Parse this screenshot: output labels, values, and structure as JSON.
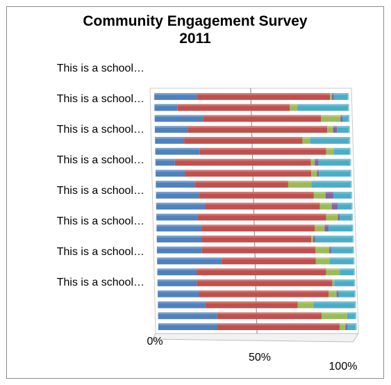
{
  "chart_data": {
    "type": "bar",
    "orientation": "horizontal",
    "stacked": "100%",
    "title": "Community Engagement Survey 2011",
    "title_lines": [
      "Community Engagement Survey",
      "2011"
    ],
    "xlabel": "",
    "ylabel": "",
    "xlim": [
      0,
      100
    ],
    "x_ticks": [
      "0%",
      "50%",
      "100%"
    ],
    "grid": "vertical at 50%",
    "legend": "none",
    "category_label": "This is a school…",
    "category_labels_shown": [
      "This is a school…",
      "This is a school…",
      "This is a school…",
      "This is a school…",
      "This is a school…",
      "This is a school…",
      "This is a school…",
      "This is a school…"
    ],
    "colors": [
      "#4f81bd",
      "#c0504d",
      "#9bbb59",
      "#8064a2",
      "#4bacc6"
    ],
    "rows": [
      [
        22,
        69,
        1,
        1,
        7
      ],
      [
        12,
        58,
        4,
        0,
        26
      ],
      [
        25,
        61,
        10,
        1,
        3
      ],
      [
        17,
        72,
        3,
        2,
        6
      ],
      [
        15,
        61,
        4,
        0,
        20
      ],
      [
        23,
        65,
        4,
        0,
        8
      ],
      [
        10,
        70,
        2,
        2,
        16
      ],
      [
        15,
        65,
        3,
        1,
        16
      ],
      [
        20,
        48,
        12,
        0,
        20
      ],
      [
        22,
        59,
        6,
        4,
        9
      ],
      [
        25,
        59,
        6,
        3,
        7
      ],
      [
        21,
        66,
        6,
        1,
        6
      ],
      [
        23,
        58,
        5,
        2,
        12
      ],
      [
        23,
        56,
        1,
        1,
        19
      ],
      [
        23,
        58,
        7,
        1,
        11
      ],
      [
        33,
        48,
        7,
        0,
        12
      ],
      [
        20,
        66,
        7,
        0,
        7
      ],
      [
        20,
        69,
        1,
        0,
        10
      ],
      [
        21,
        66,
        4,
        1,
        8
      ],
      [
        24,
        47,
        8,
        0,
        21
      ],
      [
        30,
        53,
        13,
        0,
        4
      ],
      [
        30,
        62,
        3,
        1,
        4
      ]
    ]
  }
}
